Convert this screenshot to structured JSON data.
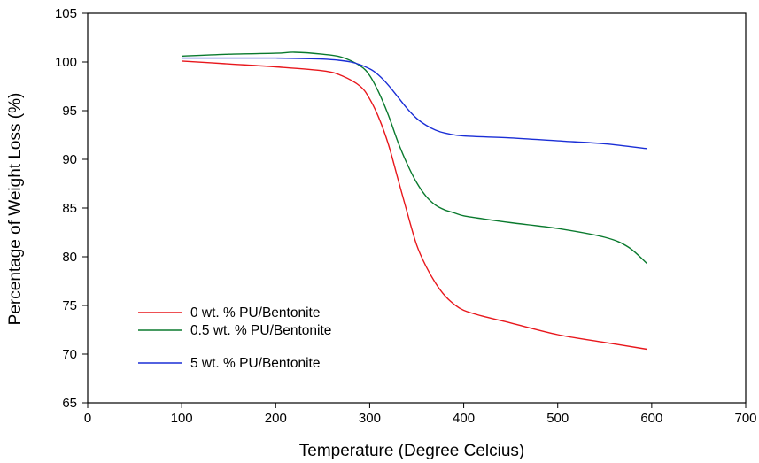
{
  "chart_data": {
    "type": "line",
    "xlabel": "Temperature (Degree Celcius)",
    "ylabel": "Percentage of Weight Loss (%)",
    "xlim": [
      0,
      700
    ],
    "ylim": [
      65,
      105
    ],
    "xticks": [
      0,
      100,
      200,
      300,
      400,
      500,
      600,
      700
    ],
    "yticks": [
      65,
      70,
      75,
      80,
      85,
      90,
      95,
      100,
      105
    ],
    "grid": false,
    "legend_position": "bottom-left",
    "series": [
      {
        "name": "0 wt. % PU/Bentonite",
        "color": "#e8171c",
        "x": [
          100,
          150,
          200,
          250,
          270,
          290,
          300,
          310,
          320,
          330,
          340,
          350,
          360,
          370,
          380,
          390,
          400,
          420,
          450,
          500,
          550,
          595
        ],
        "y": [
          100.1,
          99.8,
          99.5,
          99.1,
          98.6,
          97.5,
          96.2,
          94.2,
          91.5,
          88.0,
          84.5,
          81.2,
          79.0,
          77.3,
          76.0,
          75.1,
          74.5,
          73.9,
          73.2,
          72.0,
          71.2,
          70.5
        ]
      },
      {
        "name": "0.5 wt. % PU/Bentonite",
        "color": "#0a7a2e",
        "x": [
          100,
          150,
          200,
          220,
          250,
          270,
          290,
          300,
          310,
          320,
          330,
          340,
          350,
          360,
          370,
          380,
          390,
          400,
          420,
          450,
          500,
          550,
          575,
          595
        ],
        "y": [
          100.6,
          100.8,
          100.9,
          101.0,
          100.8,
          100.5,
          99.6,
          98.6,
          96.8,
          94.5,
          91.8,
          89.5,
          87.6,
          86.2,
          85.3,
          84.8,
          84.5,
          84.2,
          83.9,
          83.5,
          82.9,
          82.0,
          81.0,
          79.3
        ]
      },
      {
        "name": "5 wt. % PU/Bentonite",
        "color": "#1a2ed6",
        "x": [
          100,
          150,
          200,
          250,
          280,
          300,
          310,
          320,
          330,
          340,
          350,
          360,
          370,
          380,
          400,
          450,
          500,
          550,
          595
        ],
        "y": [
          100.4,
          100.4,
          100.4,
          100.3,
          100.0,
          99.3,
          98.6,
          97.6,
          96.4,
          95.2,
          94.2,
          93.5,
          93.0,
          92.7,
          92.4,
          92.2,
          91.9,
          91.6,
          91.1
        ]
      }
    ]
  }
}
